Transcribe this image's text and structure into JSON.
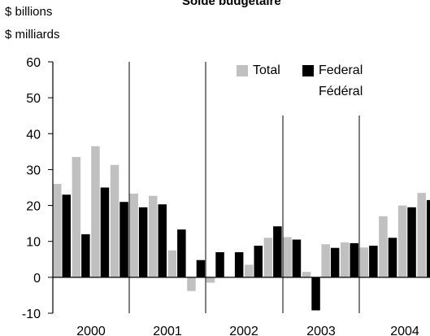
{
  "chart_data": {
    "type": "bar",
    "title": "Solde budgétaire",
    "ylabel": [
      "$ billions",
      "$ milliards"
    ],
    "ylim": [
      -10,
      60
    ],
    "yticks": [
      -10,
      0,
      10,
      20,
      30,
      40,
      50,
      60
    ],
    "years": [
      "2000",
      "2001",
      "2002",
      "2003",
      "2004"
    ],
    "quarters_per_year": 4,
    "series": [
      {
        "name": "Total",
        "color": "#c0c0c0",
        "values": [
          26,
          33.5,
          36.5,
          31.3,
          23.3,
          22.7,
          7.5,
          -3.8,
          -1.5,
          0,
          3.5,
          11,
          11.2,
          1.5,
          9.2,
          9.7,
          8.3,
          17,
          20,
          23.5
        ]
      },
      {
        "name": [
          "Federal",
          "Fédéral"
        ],
        "color": "#000000",
        "values": [
          23,
          12,
          25,
          21,
          19.5,
          20.3,
          13.3,
          4.8,
          7,
          7,
          8.8,
          14.2,
          10.5,
          -9.2,
          8.2,
          9.5,
          8.8,
          11,
          19.5,
          21.5
        ]
      }
    ],
    "legend_position": "top-right"
  }
}
